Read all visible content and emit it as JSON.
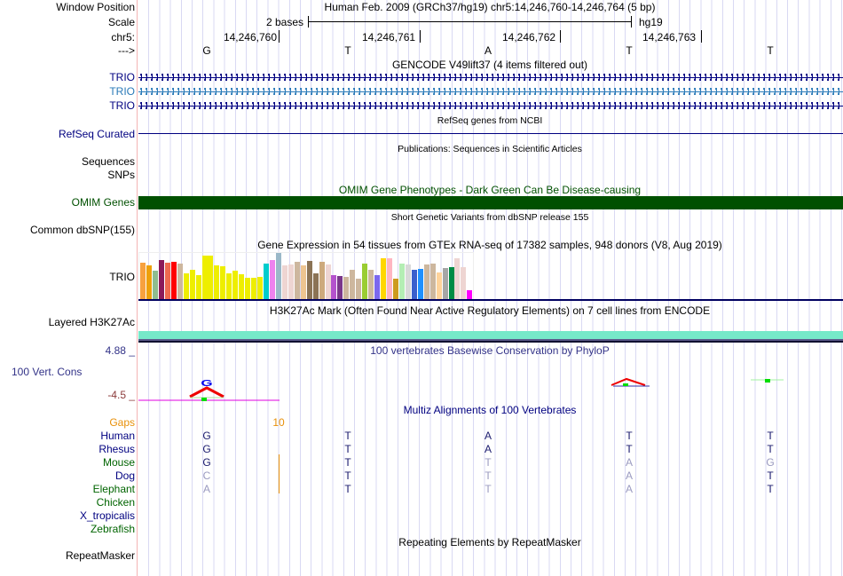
{
  "header": {
    "window_position_label": "Window Position",
    "scale_label": "Scale",
    "chr_label": "chr5:",
    "strand_label": "--->",
    "assembly_title": "Human Feb. 2009 (GRCh37/hg19)   chr5:14,246,760-14,246,764 (5 bp)",
    "scale_text": "2 bases",
    "scale_assembly": "hg19",
    "coordinates": [
      "14,246,760",
      "14,246,761",
      "14,246,762",
      "14,246,763"
    ],
    "bases": [
      "G",
      "T",
      "A",
      "T",
      "T"
    ]
  },
  "tracks": {
    "gencode": {
      "title": "GENCODE V49lift37 (4 items filtered out)",
      "items": [
        {
          "label": "TRIO",
          "color": "#000080"
        },
        {
          "label": "TRIO",
          "color": "#2a7ab8"
        },
        {
          "label": "TRIO",
          "color": "#000080"
        }
      ]
    },
    "refseq": {
      "title": "RefSeq genes from NCBI",
      "label": "RefSeq Curated"
    },
    "publications": {
      "title": "Publications: Sequences in Scientific Articles",
      "labels": [
        "Sequences",
        "SNPs"
      ]
    },
    "omim": {
      "title": "OMIM Gene Phenotypes - Dark Green Can Be Disease-causing",
      "label": "OMIM Genes",
      "color": "#005000"
    },
    "dbsnp": {
      "title": "Short Genetic Variants from dbSNP release 155",
      "label": "Common dbSNP(155)"
    },
    "gtex": {
      "title": "Gene Expression in 54 tissues from GTEx RNA-seq of 17382 samples, 948 donors (V8, Aug 2019)",
      "label": "TRIO",
      "values": [
        41,
        38,
        32,
        44,
        41,
        42,
        40,
        29,
        33,
        27,
        49,
        49,
        38,
        37,
        29,
        32,
        28,
        24,
        24,
        25,
        40,
        44,
        52,
        38,
        39,
        42,
        38,
        43,
        29,
        42,
        39,
        27,
        26,
        25,
        33,
        23,
        40,
        33,
        27,
        46,
        46,
        23,
        40,
        39,
        33,
        34,
        39,
        40,
        30,
        35,
        36,
        46,
        36,
        10
      ],
      "colors": [
        "#f7a13f",
        "#eea00a",
        "#8fbc8f",
        "#8b1a5a",
        "#ee6a50",
        "#ff0000",
        "#cdb79e",
        "#eeee00",
        "#eeee00",
        "#eeee00",
        "#eeee00",
        "#eeee00",
        "#eeee00",
        "#eeee00",
        "#eeee00",
        "#eeee00",
        "#eeee00",
        "#eeee00",
        "#eeee00",
        "#eeee00",
        "#00cdcd",
        "#ee82ee",
        "#9ab8c8",
        "#eed5d2",
        "#eed5d2",
        "#cdb79e",
        "#eec591",
        "#8b7355",
        "#8b7355",
        "#cdaa7d",
        "#eed5d2",
        "#b452cd",
        "#7a378b",
        "#cdb79e",
        "#cdb79e",
        "#cdb79e",
        "#9acd32",
        "#cdb79e",
        "#7b68ee",
        "#ffd700",
        "#ffb6c1",
        "#cd9b1d",
        "#b4eeb4",
        "#d9d9d9",
        "#3a5fcd",
        "#1e90ff",
        "#cdb79e",
        "#cdb79e",
        "#ffd39b",
        "#a6a6a6",
        "#008b45",
        "#eed5d2",
        "#eed5d2",
        "#ff00ff"
      ]
    },
    "h3k27ac": {
      "title": "H3K27Ac Mark (Often Found Near Active Regulatory Elements) on 7 cell lines from ENCODE",
      "label": "Layered H3K27Ac"
    },
    "phylop": {
      "title": "100 vertebrates Basewise Conservation by PhyloP",
      "label": "100 Vert. Cons",
      "ymax": "4.88 _",
      "ymin": "-4.5 _"
    },
    "multiz": {
      "title": "Multiz Alignments of 100 Vertebrates",
      "gaps_label": "Gaps",
      "gaps_count": "10",
      "species": [
        {
          "name": "Human",
          "color": "#000080",
          "bases": [
            "G",
            "T",
            "A",
            "T",
            "T"
          ],
          "match": [
            1,
            1,
            1,
            1,
            1
          ]
        },
        {
          "name": "Rhesus",
          "color": "#000080",
          "bases": [
            "G",
            "T",
            "A",
            "T",
            "T"
          ],
          "match": [
            1,
            1,
            1,
            1,
            1
          ]
        },
        {
          "name": "Mouse",
          "color": "#006400",
          "bases": [
            "G",
            "T",
            "T",
            "A",
            "G"
          ],
          "match": [
            1,
            1,
            0,
            0,
            0
          ]
        },
        {
          "name": "Dog",
          "color": "#000080",
          "bases": [
            "C",
            "T",
            "T",
            "A",
            "T"
          ],
          "match": [
            0,
            1,
            0,
            0,
            1
          ]
        },
        {
          "name": "Elephant",
          "color": "#006400",
          "bases": [
            "A",
            "T",
            "T",
            "A",
            "T"
          ],
          "match": [
            0,
            1,
            0,
            0,
            1
          ]
        },
        {
          "name": "Chicken",
          "color": "#006400",
          "bases": [],
          "match": []
        },
        {
          "name": "X_tropicalis",
          "color": "#000080",
          "bases": [],
          "match": []
        },
        {
          "name": "Zebrafish",
          "color": "#006400",
          "bases": [],
          "match": []
        }
      ]
    },
    "repeatmasker": {
      "title": "Repeating Elements by RepeatMasker",
      "label": "RepeatMasker"
    }
  }
}
